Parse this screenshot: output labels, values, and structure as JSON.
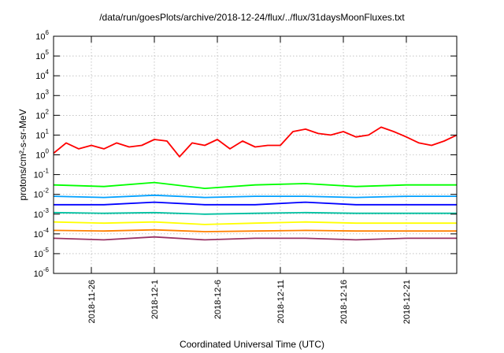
{
  "chart_data": {
    "type": "line",
    "title": "/data/run/goesPlots/archive/2018-12-24/flux/../flux/31daysMoonFluxes.txt",
    "xlabel": "Coordinated Universal Time (UTC)",
    "ylabel": "protons/cm²-s-sr-MeV",
    "yscale": "log",
    "ylim": [
      1e-06,
      1000000.0
    ],
    "xlim": [
      "2018-11-23",
      "2018-12-25"
    ],
    "grid": true,
    "x_ticks": [
      "2018-11-26",
      "2018-12-1",
      "2018-12-6",
      "2018-12-11",
      "2018-12-16",
      "2018-12-21"
    ],
    "y_ticks": [
      {
        "base": "10",
        "exp": "-6",
        "value": 1e-06
      },
      {
        "base": "10",
        "exp": "-5",
        "value": 1e-05
      },
      {
        "base": "10",
        "exp": "-4",
        "value": 0.0001
      },
      {
        "base": "10",
        "exp": "-3",
        "value": 0.001
      },
      {
        "base": "10",
        "exp": "-2",
        "value": 0.01
      },
      {
        "base": "10",
        "exp": "-1",
        "value": 0.1
      },
      {
        "base": "10",
        "exp": "0",
        "value": 1
      },
      {
        "base": "10",
        "exp": "1",
        "value": 10
      },
      {
        "base": "10",
        "exp": "2",
        "value": 100
      },
      {
        "base": "10",
        "exp": "3",
        "value": 1000
      },
      {
        "base": "10",
        "exp": "4",
        "value": 10000
      },
      {
        "base": "10",
        "exp": "5",
        "value": 100000
      },
      {
        "base": "10",
        "exp": "6",
        "value": 1000000
      }
    ],
    "series": [
      {
        "color": "#ff0000",
        "x": [
          "2018-11-23",
          "2018-11-24",
          "2018-11-25",
          "2018-11-26",
          "2018-11-27",
          "2018-11-28",
          "2018-11-29",
          "2018-11-30",
          "2018-12-01",
          "2018-12-02",
          "2018-12-03",
          "2018-12-04",
          "2018-12-05",
          "2018-12-06",
          "2018-12-07",
          "2018-12-08",
          "2018-12-09",
          "2018-12-10",
          "2018-12-11",
          "2018-12-12",
          "2018-12-13",
          "2018-12-14",
          "2018-12-15",
          "2018-12-16",
          "2018-12-17",
          "2018-12-18",
          "2018-12-19",
          "2018-12-20",
          "2018-12-21",
          "2018-12-22",
          "2018-12-23",
          "2018-12-24",
          "2018-12-25"
        ],
        "values": [
          1.2,
          4,
          2,
          3,
          2,
          4,
          2.5,
          3,
          6,
          5,
          0.8,
          4,
          3,
          6,
          2,
          5,
          2.5,
          3,
          3,
          15,
          20,
          12,
          10,
          15,
          8,
          10,
          25,
          15,
          8,
          4,
          3,
          5,
          10
        ]
      },
      {
        "color": "#00ff00",
        "x": [
          "2018-11-23",
          "2018-11-27",
          "2018-12-01",
          "2018-12-05",
          "2018-12-09",
          "2018-12-13",
          "2018-12-17",
          "2018-12-21",
          "2018-12-25"
        ],
        "values": [
          0.03,
          0.025,
          0.04,
          0.02,
          0.03,
          0.035,
          0.025,
          0.03,
          0.03
        ]
      },
      {
        "color": "#00a0ff",
        "x": [
          "2018-11-23",
          "2018-11-27",
          "2018-12-01",
          "2018-12-05",
          "2018-12-09",
          "2018-12-13",
          "2018-12-17",
          "2018-12-21",
          "2018-12-25"
        ],
        "values": [
          0.008,
          0.007,
          0.009,
          0.007,
          0.008,
          0.008,
          0.007,
          0.008,
          0.008
        ]
      },
      {
        "color": "#0000ff",
        "x": [
          "2018-11-23",
          "2018-11-27",
          "2018-12-01",
          "2018-12-05",
          "2018-12-09",
          "2018-12-13",
          "2018-12-17",
          "2018-12-21",
          "2018-12-25"
        ],
        "values": [
          0.003,
          0.003,
          0.004,
          0.003,
          0.003,
          0.004,
          0.003,
          0.003,
          0.003
        ]
      },
      {
        "color": "#00c0a0",
        "x": [
          "2018-11-23",
          "2018-11-27",
          "2018-12-01",
          "2018-12-05",
          "2018-12-09",
          "2018-12-13",
          "2018-12-17",
          "2018-12-21",
          "2018-12-25"
        ],
        "values": [
          0.0012,
          0.0011,
          0.0012,
          0.001,
          0.0011,
          0.0012,
          0.0011,
          0.0011,
          0.0011
        ]
      },
      {
        "color": "#ffff00",
        "x": [
          "2018-11-23",
          "2018-11-27",
          "2018-12-01",
          "2018-12-05",
          "2018-12-09",
          "2018-12-13",
          "2018-12-17",
          "2018-12-21",
          "2018-12-25"
        ],
        "values": [
          0.0004,
          0.00035,
          0.0004,
          0.0003,
          0.00035,
          0.0004,
          0.00035,
          0.00035,
          0.00035
        ]
      },
      {
        "color": "#ff8000",
        "x": [
          "2018-11-23",
          "2018-11-27",
          "2018-12-01",
          "2018-12-05",
          "2018-12-09",
          "2018-12-13",
          "2018-12-17",
          "2018-12-21",
          "2018-12-25"
        ],
        "values": [
          0.00015,
          0.00014,
          0.00016,
          0.00013,
          0.00014,
          0.00015,
          0.00014,
          0.00014,
          0.00014
        ]
      },
      {
        "color": "#993366",
        "x": [
          "2018-11-23",
          "2018-11-27",
          "2018-12-01",
          "2018-12-05",
          "2018-12-09",
          "2018-12-13",
          "2018-12-17",
          "2018-12-21",
          "2018-12-25"
        ],
        "values": [
          6e-05,
          5e-05,
          7e-05,
          5e-05,
          6e-05,
          6e-05,
          5e-05,
          6e-05,
          6e-05
        ]
      }
    ]
  }
}
